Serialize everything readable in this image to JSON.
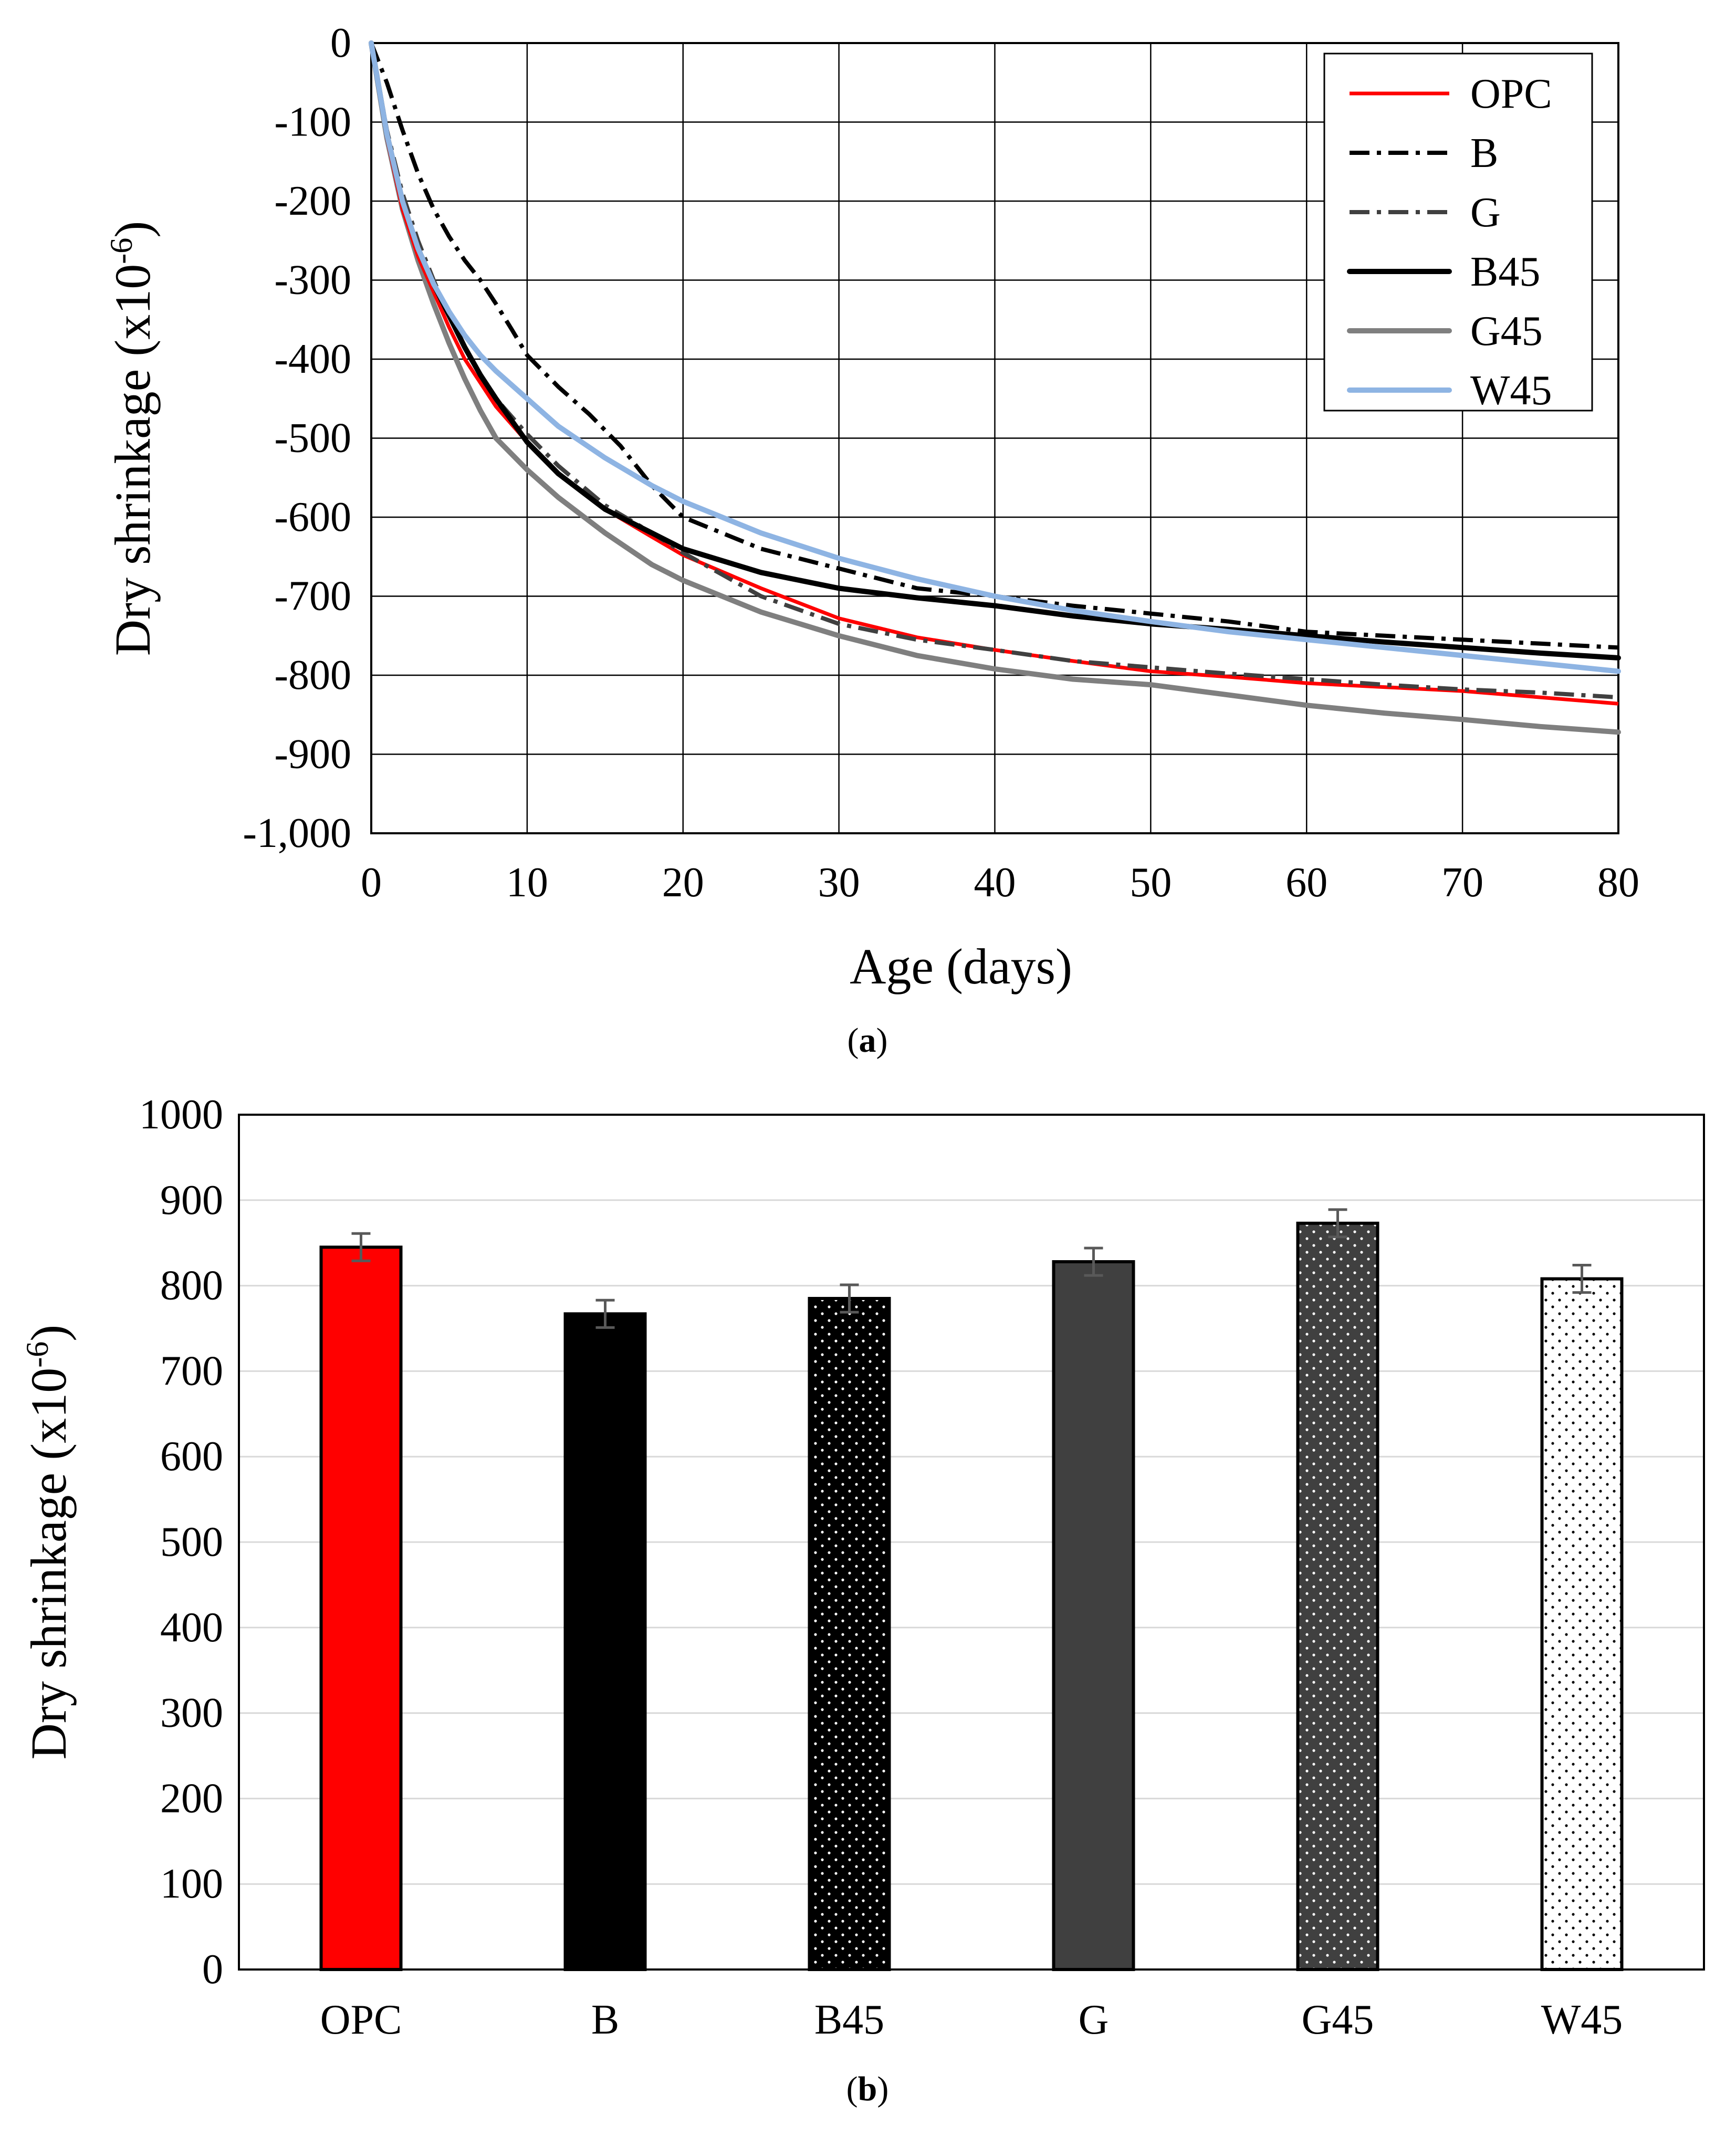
{
  "colors": {
    "OPC": "#ff0000",
    "B": "#000000",
    "G": "#404040",
    "B45": "#000000",
    "G45": "#7f7f7f",
    "W45": "#8eb4e3",
    "grid": "#000000",
    "bar_grid": "#d9d9d9",
    "error_bar": "#595959"
  },
  "chart_data": [
    {
      "type": "line",
      "panel_label": {
        "open": "(",
        "letter": "a",
        "close": ")"
      },
      "title": "",
      "xlabel": "Age  (days)",
      "ylabel": {
        "base": "Dry shrinkage  (x10",
        "exponent": "-6",
        "suffix": ")"
      },
      "xlim": [
        0,
        80
      ],
      "ylim": [
        -1000,
        0
      ],
      "xticks": [
        0,
        10,
        20,
        30,
        40,
        50,
        60,
        70,
        80
      ],
      "xtick_labels": [
        "0",
        "10",
        "20",
        "30",
        "40",
        "50",
        "60",
        "70",
        "80"
      ],
      "yticks": [
        0,
        -100,
        -200,
        -300,
        -400,
        -500,
        -600,
        -700,
        -800,
        -900,
        -1000
      ],
      "ytick_labels": [
        "0",
        "-100",
        "-200",
        "-300",
        "-400",
        "-500",
        "-600",
        "-700",
        "-800",
        "-900",
        "-1,000"
      ],
      "grid": true,
      "legend_position": "top-right",
      "series": [
        {
          "name": "OPC",
          "style": "solid",
          "x": [
            0,
            1,
            2,
            3,
            4,
            5,
            6,
            7,
            8,
            10,
            12,
            15,
            18,
            20,
            25,
            30,
            35,
            40,
            45,
            50,
            55,
            60,
            65,
            70,
            75,
            80
          ],
          "y": [
            0,
            -120,
            -210,
            -270,
            -315,
            -360,
            -400,
            -430,
            -460,
            -505,
            -545,
            -590,
            -625,
            -648,
            -690,
            -728,
            -752,
            -768,
            -782,
            -795,
            -802,
            -810,
            -815,
            -820,
            -828,
            -836
          ]
        },
        {
          "name": "B",
          "style": "dashdot",
          "x": [
            0,
            1,
            2,
            3,
            4,
            5,
            6,
            7,
            8,
            9,
            10,
            12,
            14,
            16,
            18,
            20,
            25,
            30,
            35,
            40,
            45,
            50,
            55,
            60,
            65,
            70,
            75,
            80
          ],
          "y": [
            0,
            -50,
            -110,
            -165,
            -210,
            -245,
            -275,
            -300,
            -330,
            -362,
            -395,
            -435,
            -470,
            -510,
            -560,
            -600,
            -640,
            -665,
            -690,
            -700,
            -712,
            -722,
            -732,
            -745,
            -750,
            -755,
            -760,
            -765
          ]
        },
        {
          "name": "G",
          "style": "dashdot",
          "x": [
            0,
            1,
            2,
            3,
            4,
            5,
            6,
            7,
            8,
            10,
            12,
            15,
            18,
            20,
            25,
            30,
            35,
            40,
            45,
            50,
            55,
            60,
            65,
            70,
            75,
            80
          ],
          "y": [
            0,
            -110,
            -190,
            -250,
            -300,
            -345,
            -385,
            -420,
            -450,
            -495,
            -535,
            -585,
            -620,
            -645,
            -700,
            -735,
            -755,
            -768,
            -782,
            -790,
            -798,
            -805,
            -812,
            -818,
            -822,
            -828
          ]
        },
        {
          "name": "B45",
          "style": "solid-thick",
          "x": [
            0,
            1,
            2,
            3,
            4,
            5,
            6,
            7,
            8,
            10,
            12,
            15,
            18,
            20,
            25,
            30,
            35,
            40,
            45,
            50,
            55,
            60,
            65,
            70,
            75,
            80
          ],
          "y": [
            0,
            -115,
            -200,
            -260,
            -305,
            -345,
            -385,
            -420,
            -450,
            -505,
            -545,
            -590,
            -620,
            -640,
            -670,
            -690,
            -702,
            -712,
            -725,
            -735,
            -742,
            -750,
            -758,
            -765,
            -772,
            -778
          ]
        },
        {
          "name": "G45",
          "style": "solid-thick",
          "x": [
            0,
            1,
            2,
            3,
            4,
            5,
            6,
            7,
            8,
            10,
            12,
            15,
            18,
            20,
            25,
            30,
            35,
            40,
            45,
            50,
            55,
            60,
            65,
            70,
            75,
            80
          ],
          "y": [
            0,
            -120,
            -210,
            -275,
            -330,
            -380,
            -425,
            -465,
            -500,
            -540,
            -575,
            -620,
            -660,
            -680,
            -720,
            -750,
            -775,
            -792,
            -805,
            -812,
            -825,
            -838,
            -848,
            -856,
            -865,
            -872
          ]
        },
        {
          "name": "W45",
          "style": "solid-thick",
          "x": [
            0,
            1,
            2,
            3,
            4,
            5,
            6,
            7,
            8,
            10,
            12,
            15,
            18,
            20,
            25,
            30,
            35,
            40,
            45,
            50,
            55,
            60,
            65,
            70,
            75,
            80
          ],
          "y": [
            0,
            -115,
            -200,
            -260,
            -305,
            -340,
            -370,
            -395,
            -415,
            -450,
            -485,
            -525,
            -560,
            -580,
            -620,
            -652,
            -678,
            -700,
            -718,
            -732,
            -745,
            -755,
            -765,
            -775,
            -785,
            -795
          ]
        }
      ]
    },
    {
      "type": "bar",
      "panel_label": {
        "open": "(",
        "letter": "b",
        "close": ")"
      },
      "title": "",
      "xlabel": "",
      "ylabel": {
        "base": "Dry shrinkage  (x10",
        "exponent": "-6",
        "suffix": ")"
      },
      "ylim": [
        0,
        1000
      ],
      "yticks": [
        0,
        100,
        200,
        300,
        400,
        500,
        600,
        700,
        800,
        900,
        1000
      ],
      "ytick_labels": [
        "0",
        "100",
        "200",
        "300",
        "400",
        "500",
        "600",
        "700",
        "800",
        "900",
        "1000"
      ],
      "grid": true,
      "categories": [
        "OPC",
        "B",
        "B45",
        "G",
        "G45",
        "W45"
      ],
      "values": [
        845,
        767,
        785,
        828,
        873,
        808
      ],
      "errors": [
        16,
        16,
        16,
        16,
        16,
        16
      ],
      "fills": [
        "OPC",
        "B",
        "B45-dots",
        "G",
        "G45-dots",
        "W45-dots"
      ]
    }
  ]
}
